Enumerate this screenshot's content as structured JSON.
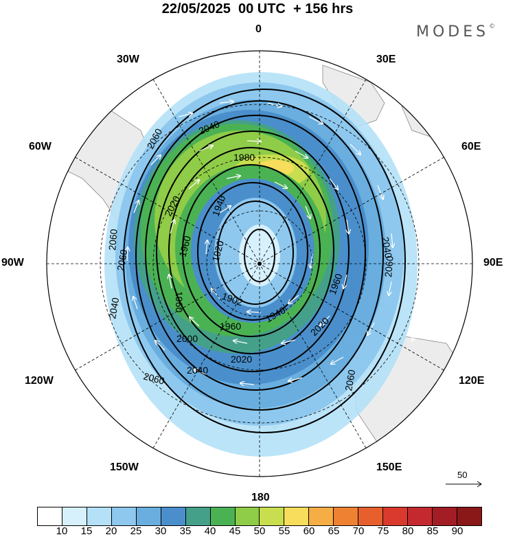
{
  "title": "22/05/2025  00 UTC  + 156 hrs",
  "brand": "MODES",
  "brand_mark": "©",
  "longitude_labels": {
    "top": "0",
    "top_right": "30E",
    "right_upper": "60E",
    "right": "90E",
    "right_lower": "120E",
    "bottom_right": "150E",
    "bottom": "180",
    "bottom_left": "150W",
    "left_lower": "120W",
    "left": "90W",
    "left_upper": "60W",
    "top_left": "30W"
  },
  "contour_labels": [
    "2060",
    "2040",
    "1980",
    "2020",
    "1940",
    "1920",
    "1960",
    "2060",
    "2040",
    "2060",
    "1960",
    "1902",
    "1940",
    "1960",
    "2000",
    "2020",
    "2040",
    "2060",
    "2060",
    "2040",
    "2060",
    "1960",
    "2020"
  ],
  "reference_vector": {
    "value": "50",
    "label": "50"
  },
  "colorbar": {
    "ticks": [
      "10",
      "15",
      "20",
      "25",
      "30",
      "35",
      "40",
      "45",
      "50",
      "55",
      "60",
      "65",
      "70",
      "75",
      "80",
      "85",
      "90"
    ],
    "colors": [
      "#ffffff",
      "#d6f0fc",
      "#b4e1f7",
      "#8ec8ee",
      "#69aedf",
      "#4a8fcb",
      "#45a08a",
      "#4bb254",
      "#8fcc47",
      "#c8de4e",
      "#f8dc5b",
      "#f5ad45",
      "#ee8232",
      "#e75f2d",
      "#d93a2d",
      "#c42930",
      "#a31d24",
      "#8b1818"
    ]
  }
}
